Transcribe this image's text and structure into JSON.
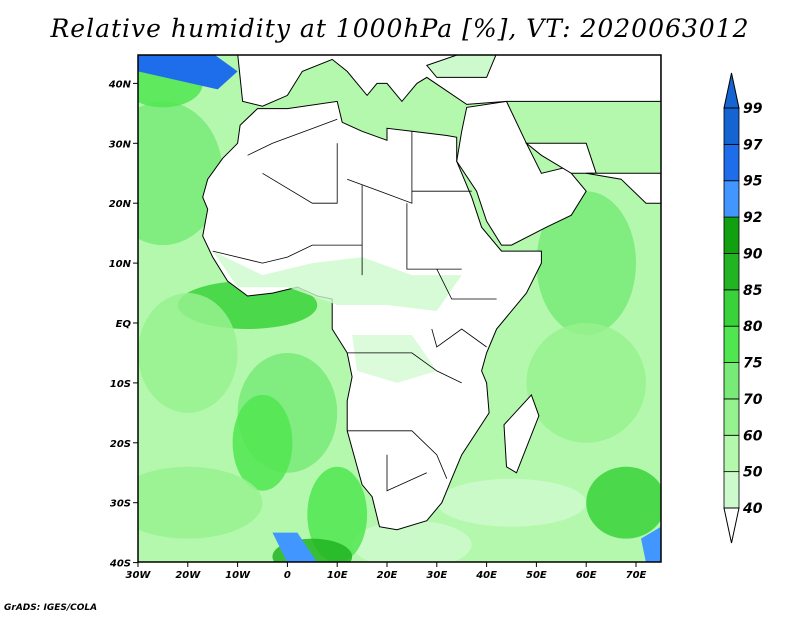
{
  "title": "Relative humidity at 1000hPa [%], VT: 2020063012",
  "credit": "GrADS: IGES/COLA",
  "map": {
    "lon_range": [
      -30,
      75
    ],
    "lat_range": [
      -40,
      45
    ],
    "x_ticks": [
      {
        "lon": -30,
        "label": "30W"
      },
      {
        "lon": -20,
        "label": "20W"
      },
      {
        "lon": -10,
        "label": "10W"
      },
      {
        "lon": 0,
        "label": "0"
      },
      {
        "lon": 10,
        "label": "10E"
      },
      {
        "lon": 20,
        "label": "20E"
      },
      {
        "lon": 30,
        "label": "30E"
      },
      {
        "lon": 40,
        "label": "40E"
      },
      {
        "lon": 50,
        "label": "50E"
      },
      {
        "lon": 60,
        "label": "60E"
      },
      {
        "lon": 70,
        "label": "70E"
      }
    ],
    "y_ticks": [
      {
        "lat": 40,
        "label": "40N"
      },
      {
        "lat": 30,
        "label": "30N"
      },
      {
        "lat": 20,
        "label": "20N"
      },
      {
        "lat": 10,
        "label": "10N"
      },
      {
        "lat": 0,
        "label": "EQ"
      },
      {
        "lat": -10,
        "label": "10S"
      },
      {
        "lat": -20,
        "label": "20S"
      },
      {
        "lat": -30,
        "label": "30S"
      },
      {
        "lat": -40,
        "label": "40S"
      }
    ]
  },
  "colorbar": {
    "levels": [
      "40",
      "50",
      "60",
      "70",
      "75",
      "80",
      "85",
      "90",
      "92",
      "95",
      "97",
      "99"
    ],
    "colors": [
      "#e6fde6",
      "#ccfacc",
      "#b4f8ae",
      "#96f28e",
      "#78ea78",
      "#50e650",
      "#3ad23a",
      "#22b422",
      "#10a010",
      "#4196ff",
      "#1e6eeb",
      "#1464d2"
    ]
  }
}
